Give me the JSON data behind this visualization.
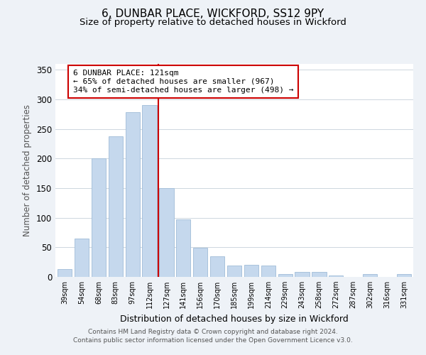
{
  "title": "6, DUNBAR PLACE, WICKFORD, SS12 9PY",
  "subtitle": "Size of property relative to detached houses in Wickford",
  "xlabel": "Distribution of detached houses by size in Wickford",
  "ylabel": "Number of detached properties",
  "bar_labels": [
    "39sqm",
    "54sqm",
    "68sqm",
    "83sqm",
    "97sqm",
    "112sqm",
    "127sqm",
    "141sqm",
    "156sqm",
    "170sqm",
    "185sqm",
    "199sqm",
    "214sqm",
    "229sqm",
    "243sqm",
    "258sqm",
    "272sqm",
    "287sqm",
    "302sqm",
    "316sqm",
    "331sqm"
  ],
  "bar_values": [
    13,
    65,
    200,
    238,
    278,
    290,
    150,
    97,
    49,
    35,
    19,
    20,
    19,
    5,
    8,
    8,
    2,
    0,
    5,
    0,
    5
  ],
  "bar_color": "#c5d8ed",
  "bar_edge_color": "#a0bcd8",
  "vline_x": 5.5,
  "vline_color": "#cc0000",
  "annotation_title": "6 DUNBAR PLACE: 121sqm",
  "annotation_line1": "← 65% of detached houses are smaller (967)",
  "annotation_line2": "34% of semi-detached houses are larger (498) →",
  "annotation_box_color": "#ffffff",
  "annotation_box_edge": "#cc0000",
  "ylim": [
    0,
    360
  ],
  "yticks": [
    0,
    50,
    100,
    150,
    200,
    250,
    300,
    350
  ],
  "footer_line1": "Contains HM Land Registry data © Crown copyright and database right 2024.",
  "footer_line2": "Contains public sector information licensed under the Open Government Licence v3.0.",
  "bg_color": "#eef2f7",
  "plot_bg_color": "#ffffff",
  "title_fontsize": 11,
  "subtitle_fontsize": 9.5
}
